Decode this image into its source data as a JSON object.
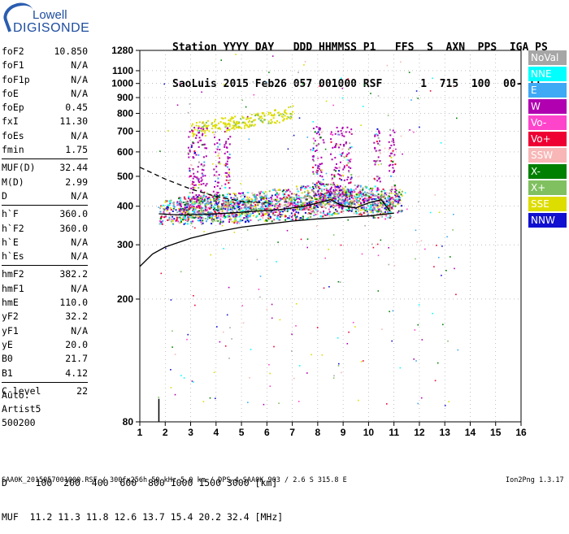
{
  "logo": {
    "line1": "Lowell",
    "line2": "DIGISONDE"
  },
  "station_header": {
    "line1": "Station YYYY DAY   DDD HHMMSS P1   FFS  S  AXN  PPS  IGA PS",
    "line2": "SaoLuis 2015 Feb26 057 001000 RSF      1  715  100  00- 11"
  },
  "params": [
    {
      "k": "foF2",
      "v": "10.850"
    },
    {
      "k": "foF1",
      "v": "N/A"
    },
    {
      "k": "foF1p",
      "v": "N/A"
    },
    {
      "k": "foE",
      "v": "N/A"
    },
    {
      "k": "foEp",
      "v": "0.45"
    },
    {
      "k": "fxI",
      "v": "11.30"
    },
    {
      "k": "foEs",
      "v": "N/A"
    },
    {
      "k": "fmin",
      "v": "1.75"
    },
    {
      "sep": true
    },
    {
      "k": "MUF(D)",
      "v": "32.44"
    },
    {
      "k": "M(D)",
      "v": "2.99"
    },
    {
      "k": "D",
      "v": "N/A"
    },
    {
      "sep": true
    },
    {
      "k": "h`F",
      "v": "360.0"
    },
    {
      "k": "h`F2",
      "v": "360.0"
    },
    {
      "k": "h`E",
      "v": "N/A"
    },
    {
      "k": "h`Es",
      "v": "N/A"
    },
    {
      "sep": true
    },
    {
      "k": "hmF2",
      "v": "382.2"
    },
    {
      "k": "hmF1",
      "v": "N/A"
    },
    {
      "k": "hmE",
      "v": "110.0"
    },
    {
      "k": "yF2",
      "v": "32.2"
    },
    {
      "k": "yF1",
      "v": "N/A"
    },
    {
      "k": "yE",
      "v": "20.0"
    },
    {
      "k": "B0",
      "v": "21.7"
    },
    {
      "k": "B1",
      "v": "4.12"
    },
    {
      "sep": true
    },
    {
      "k": "C-level",
      "v": "22"
    }
  ],
  "auto": {
    "line1": "Auto:",
    "line2": "Artist5",
    "line3": "500200"
  },
  "legend": [
    {
      "label": "NoVal",
      "color": "#a6a6a6"
    },
    {
      "label": "NNE",
      "color": "#00ffff"
    },
    {
      "label": "E",
      "color": "#3fa9f5"
    },
    {
      "label": "W",
      "color": "#b000b0"
    },
    {
      "label": "Vo-",
      "color": "#ff44cc"
    },
    {
      "label": "Vo+",
      "color": "#ee0033"
    },
    {
      "label": "SSW",
      "color": "#f8b6b6"
    },
    {
      "label": "X-",
      "color": "#008000"
    },
    {
      "label": "X+",
      "color": "#80c060"
    },
    {
      "label": "SSE",
      "color": "#dddd00"
    },
    {
      "label": "NNW",
      "color": "#1010d0"
    }
  ],
  "bottom_table": {
    "line1": "D     100  200  400  600  800 1000 1500 3000 [km]",
    "line2": "MUF  11.2 11.3 11.8 12.6 13.7 15.4 20.2 32.4 [MHz]"
  },
  "footer": {
    "left": "SAA0K_2015057001000.RSF / 300fx256h 50 kHz 5.0 km / DPS-4 SAA0K 903 / 2.6 S 315.8 E",
    "right": "Ion2Png 1.3.17"
  },
  "chart_data": {
    "type": "scatter",
    "x_ticks": [
      1,
      2,
      3,
      4,
      5,
      6,
      7,
      8,
      9,
      10,
      11,
      12,
      13,
      14,
      15,
      16
    ],
    "y_ticks": [
      80,
      200,
      300,
      400,
      500,
      600,
      700,
      800,
      900,
      1000,
      1100,
      1280
    ],
    "xlim": [
      1,
      16
    ],
    "ylim": [
      80,
      1280
    ],
    "y_scale": "log",
    "ionogram_echo_bands": [
      {
        "name": "o-trace",
        "x": [
          1.75,
          2.5,
          3.5,
          4.5,
          5.5,
          6.5,
          7.5,
          8.5,
          9.0,
          9.5,
          10.0,
          10.5,
          10.85
        ],
        "y": [
          385,
          385,
          385,
          385,
          390,
          395,
          400,
          410,
          420,
          415,
          405,
          400,
          395
        ]
      },
      {
        "name": "x-trace",
        "x": [
          2.5,
          3.5,
          4.5,
          5.5,
          6.5,
          7.5,
          8.5,
          9.5,
          10.5,
          11.3
        ],
        "y": [
          395,
          400,
          405,
          410,
          420,
          430,
          440,
          430,
          420,
          415
        ]
      },
      {
        "name": "second-hop",
        "x": [
          3.0,
          3.5,
          4.0,
          4.5,
          5.0,
          5.5,
          6.5,
          7.0
        ],
        "y": [
          710,
          725,
          735,
          745,
          755,
          770,
          790,
          810
        ]
      }
    ],
    "profile_lines": [
      {
        "name": "solid-lower",
        "style": "solid",
        "x": [
          1.0,
          1.5,
          2.0,
          3.0,
          4.0,
          5.0,
          6.0,
          7.0,
          8.0,
          9.0,
          10.0,
          11.0
        ],
        "y": [
          255,
          280,
          295,
          315,
          330,
          342,
          350,
          358,
          364,
          368,
          372,
          380
        ]
      },
      {
        "name": "dashed",
        "style": "dashed",
        "x": [
          1.0,
          2.0,
          3.0,
          4.0,
          5.0,
          6.0
        ],
        "y": [
          535,
          490,
          455,
          430,
          415,
          410
        ]
      },
      {
        "name": "solid-trace",
        "style": "solid",
        "x": [
          1.75,
          2.5,
          3.5,
          4.5,
          5.5,
          6.5,
          7.5,
          8.5,
          9.0,
          9.5,
          10.0,
          10.5,
          10.85
        ],
        "y": [
          378,
          375,
          376,
          380,
          385,
          390,
          400,
          420,
          400,
          395,
          410,
          420,
          385
        ]
      }
    ]
  }
}
